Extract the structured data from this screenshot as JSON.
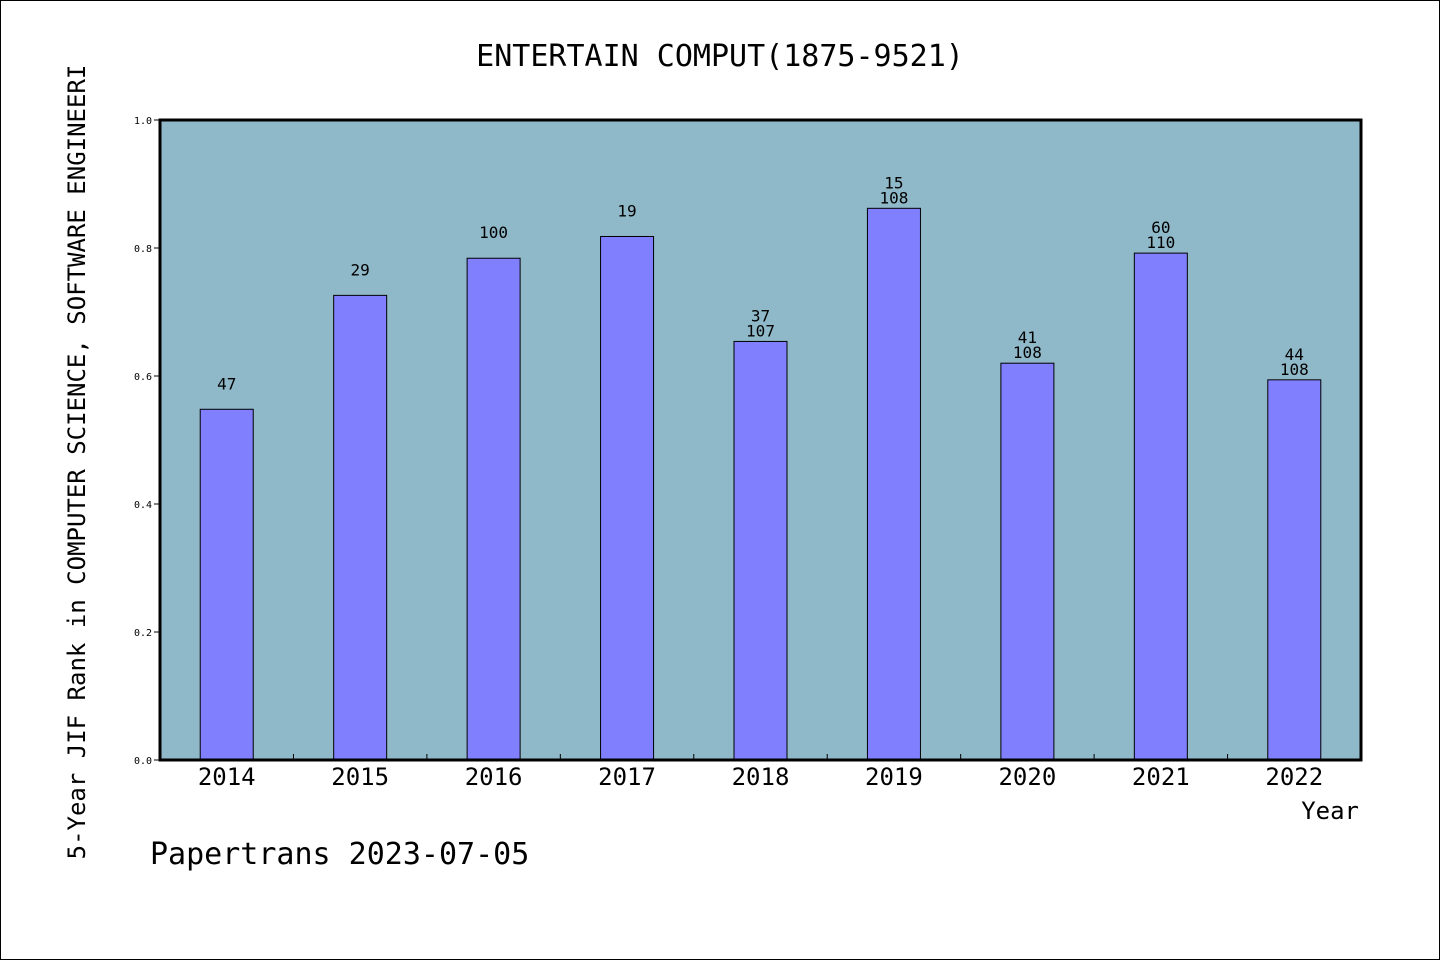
{
  "chart_data": {
    "type": "bar",
    "title": "ENTERTAIN COMPUT(1875-9521)",
    "xlabel": "Year",
    "ylabel": "5-Year JIF Rank in COMPUTER SCIENCE, SOFTWARE ENGINEERI",
    "ylim": [
      0,
      1.0
    ],
    "yticks": [
      "0.0",
      "0.2",
      "0.4",
      "0.6",
      "0.8",
      "1.0"
    ],
    "grid": false,
    "categories": [
      "2014",
      "2015",
      "2016",
      "2017",
      "2018",
      "2019",
      "2020",
      "2021",
      "2022"
    ],
    "values": [
      0.548,
      0.726,
      0.784,
      0.818,
      0.654,
      0.862,
      0.62,
      0.792,
      0.594
    ],
    "rank_labels": [
      "47",
      "29",
      "100",
      "19",
      "37",
      "15",
      "41",
      "60",
      "44"
    ],
    "total_labels": [
      "",
      "",
      "",
      "",
      "107",
      "108",
      "108",
      "110",
      "108"
    ],
    "colors": {
      "plot_bg": "#8fb8c8",
      "bar": "#8080ff"
    }
  },
  "footer": "Papertrans 2023-07-05"
}
